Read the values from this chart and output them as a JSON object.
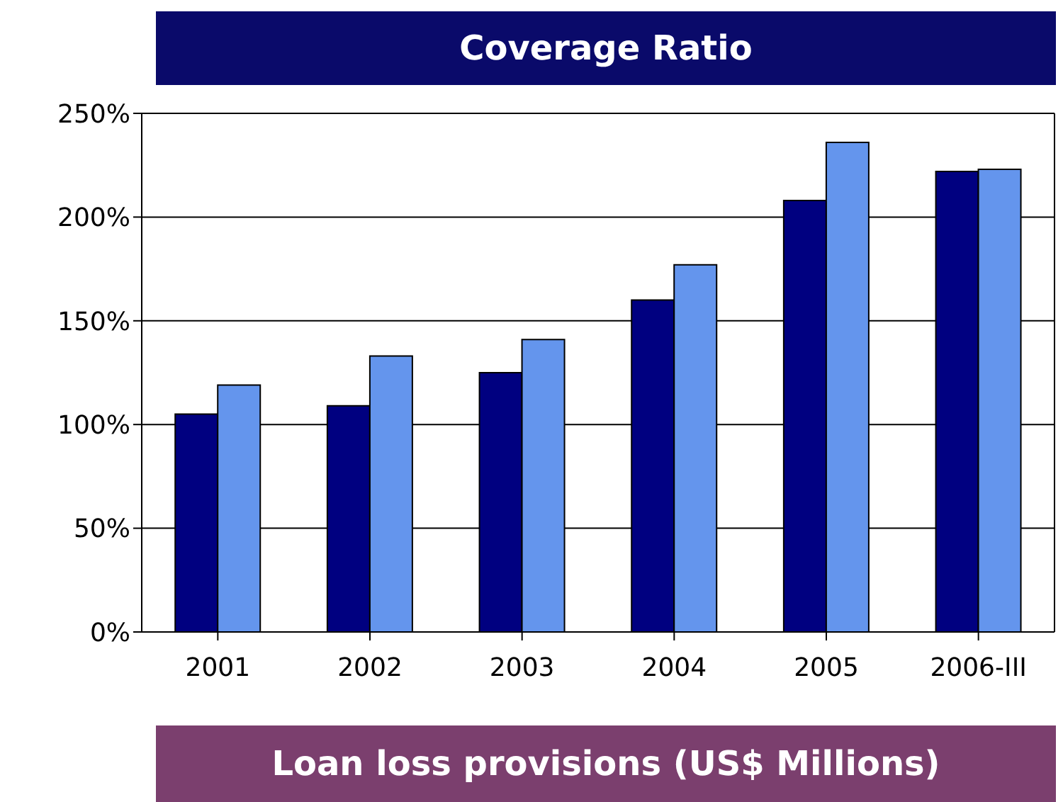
{
  "chart_data": {
    "type": "bar",
    "title": "Coverage Ratio",
    "categories": [
      "2001",
      "2002",
      "2003",
      "2004",
      "2005",
      "2006-III"
    ],
    "series": [
      {
        "color": "#000080",
        "values": [
          105,
          109,
          125,
          160,
          208,
          222
        ]
      },
      {
        "color": "#6495ed",
        "values": [
          119,
          133,
          141,
          177,
          236,
          223
        ]
      }
    ],
    "ylim": [
      0,
      250
    ],
    "yticks": [
      {
        "value": 0,
        "label": "0%"
      },
      {
        "value": 50,
        "label": "50%"
      },
      {
        "value": 100,
        "label": "100%"
      },
      {
        "value": 150,
        "label": "150%"
      },
      {
        "value": 200,
        "label": "200%"
      },
      {
        "value": 250,
        "label": "250%"
      }
    ],
    "grid": "y",
    "legend": false,
    "annotations": [
      "Loan loss provisions (US$ Millions)"
    ]
  }
}
